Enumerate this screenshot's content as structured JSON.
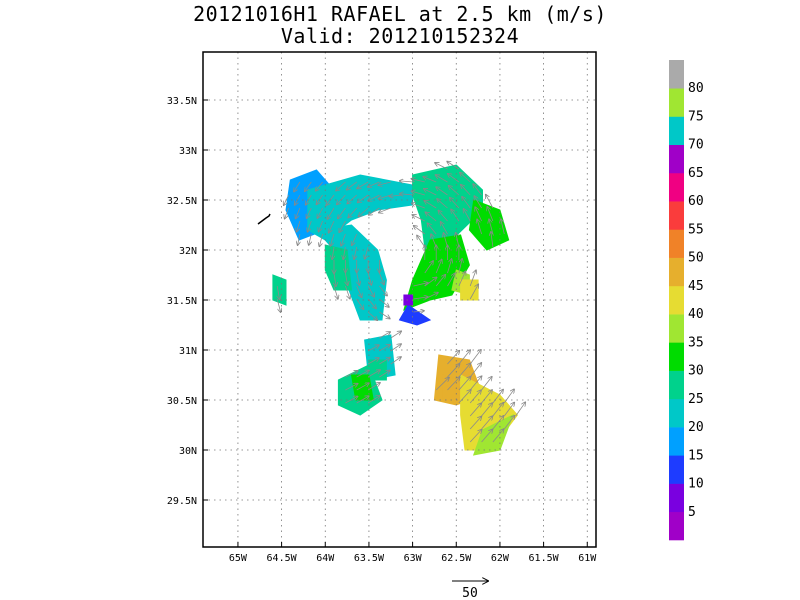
{
  "title": "20121016H1 RAFAEL at 2.5 km (m/s)",
  "subtitle": "Valid: 201210152324",
  "chart_data": {
    "type": "heatmap",
    "x_axis": {
      "range": [
        -65.4,
        -60.9
      ],
      "ticks": [
        -65,
        -64.5,
        -64,
        -63.5,
        -63,
        -62.5,
        -62,
        -61.5,
        -61
      ],
      "tick_labels": [
        "65W",
        "64.5W",
        "64W",
        "63.5W",
        "63W",
        "62.5W",
        "62W",
        "61.5W",
        "61W"
      ]
    },
    "y_axis": {
      "range": [
        29.03,
        33.98
      ],
      "ticks": [
        29.5,
        30,
        30.5,
        31,
        31.5,
        32,
        32.5,
        33,
        33.5
      ],
      "tick_labels": [
        "29.5N",
        "30N",
        "30.5N",
        "31N",
        "31.5N",
        "32N",
        "32.5N",
        "33N",
        "33.5N"
      ]
    },
    "grid": true,
    "colorbar": {
      "labels": [
        "5",
        "10",
        "15",
        "20",
        "25",
        "30",
        "35",
        "40",
        "45",
        "50",
        "55",
        "60",
        "65",
        "70",
        "75",
        "80"
      ],
      "colors": [
        "#a000c8",
        "#7a00e0",
        "#1e3cff",
        "#00a0ff",
        "#00c8c8",
        "#00d28c",
        "#00dc00",
        "#a0e632",
        "#e6dc32",
        "#e6af2d",
        "#f08228",
        "#fa3c3c",
        "#f00082",
        "#a000c8",
        "#00c8c8",
        "#a0e632",
        "#aaaaaa"
      ]
    },
    "vector_scale_label": "50",
    "regions": [
      {
        "value": 15,
        "poly": [
          [
            -64.4,
            32.7
          ],
          [
            -64.1,
            32.8
          ],
          [
            -63.9,
            32.6
          ],
          [
            -64.0,
            32.2
          ],
          [
            -64.3,
            32.1
          ],
          [
            -64.45,
            32.4
          ]
        ]
      },
      {
        "value": 22,
        "poly": [
          [
            -64.2,
            32.6
          ],
          [
            -63.6,
            32.75
          ],
          [
            -63.0,
            32.65
          ],
          [
            -63.0,
            32.45
          ],
          [
            -63.4,
            32.4
          ],
          [
            -63.7,
            32.3
          ],
          [
            -64.0,
            32.1
          ],
          [
            -64.2,
            32.2
          ]
        ]
      },
      {
        "value": 20,
        "poly": [
          [
            -64.1,
            32.2
          ],
          [
            -63.9,
            32.0
          ],
          [
            -63.75,
            31.65
          ],
          [
            -63.6,
            31.3
          ],
          [
            -63.35,
            31.3
          ],
          [
            -63.3,
            31.7
          ],
          [
            -63.4,
            32.0
          ],
          [
            -63.7,
            32.25
          ]
        ]
      },
      {
        "value": 25,
        "poly": [
          [
            -64.0,
            32.05
          ],
          [
            -63.75,
            32.0
          ],
          [
            -63.7,
            31.6
          ],
          [
            -63.9,
            31.6
          ],
          [
            -64.0,
            31.8
          ]
        ]
      },
      {
        "value": 27,
        "poly": [
          [
            -63.0,
            32.75
          ],
          [
            -62.5,
            32.85
          ],
          [
            -62.2,
            32.6
          ],
          [
            -62.2,
            32.4
          ],
          [
            -62.55,
            32.1
          ],
          [
            -62.85,
            31.95
          ],
          [
            -62.9,
            32.3
          ],
          [
            -63.0,
            32.55
          ]
        ]
      },
      {
        "value": 33,
        "poly": [
          [
            -62.3,
            32.5
          ],
          [
            -62.0,
            32.4
          ],
          [
            -61.9,
            32.1
          ],
          [
            -62.15,
            32.0
          ],
          [
            -62.35,
            32.2
          ]
        ]
      },
      {
        "value": 30,
        "poly": [
          [
            -62.8,
            32.1
          ],
          [
            -62.45,
            32.15
          ],
          [
            -62.35,
            31.85
          ],
          [
            -62.55,
            31.55
          ],
          [
            -62.8,
            31.5
          ],
          [
            -63.1,
            31.4
          ],
          [
            -63.0,
            31.7
          ]
        ]
      },
      {
        "value": 37,
        "poly": [
          [
            -62.5,
            31.8
          ],
          [
            -62.35,
            31.75
          ],
          [
            -62.35,
            31.55
          ],
          [
            -62.55,
            31.6
          ]
        ]
      },
      {
        "value": 40,
        "poly": [
          [
            -62.45,
            31.7
          ],
          [
            -62.25,
            31.7
          ],
          [
            -62.25,
            31.5
          ],
          [
            -62.45,
            31.5
          ]
        ]
      },
      {
        "value": 12,
        "poly": [
          [
            -63.05,
            31.45
          ],
          [
            -62.8,
            31.3
          ],
          [
            -62.95,
            31.25
          ],
          [
            -63.15,
            31.3
          ]
        ]
      },
      {
        "value": 8,
        "poly": [
          [
            -63.1,
            31.55
          ],
          [
            -63.0,
            31.55
          ],
          [
            -63.0,
            31.45
          ],
          [
            -63.1,
            31.45
          ]
        ]
      },
      {
        "value": 20,
        "poly": [
          [
            -63.55,
            31.1
          ],
          [
            -63.25,
            31.15
          ],
          [
            -63.2,
            30.75
          ],
          [
            -63.5,
            30.7
          ]
        ]
      },
      {
        "value": 25,
        "poly": [
          [
            -63.5,
            30.9
          ],
          [
            -63.3,
            30.9
          ],
          [
            -63.3,
            30.7
          ],
          [
            -63.5,
            30.7
          ]
        ]
      },
      {
        "value": 27,
        "poly": [
          [
            -63.85,
            30.7
          ],
          [
            -63.5,
            30.85
          ],
          [
            -63.35,
            30.5
          ],
          [
            -63.6,
            30.35
          ],
          [
            -63.85,
            30.45
          ]
        ]
      },
      {
        "value": 33,
        "poly": [
          [
            -63.7,
            30.75
          ],
          [
            -63.5,
            30.75
          ],
          [
            -63.45,
            30.5
          ],
          [
            -63.65,
            30.5
          ]
        ]
      },
      {
        "value": 25,
        "poly": [
          [
            -64.6,
            31.75
          ],
          [
            -64.45,
            31.7
          ],
          [
            -64.45,
            31.45
          ],
          [
            -64.6,
            31.5
          ]
        ]
      },
      {
        "value": 45,
        "poly": [
          [
            -62.7,
            30.95
          ],
          [
            -62.35,
            30.9
          ],
          [
            -62.2,
            30.55
          ],
          [
            -62.5,
            30.45
          ],
          [
            -62.75,
            30.5
          ]
        ]
      },
      {
        "value": 47,
        "poly": [
          [
            -62.65,
            30.75
          ],
          [
            -62.45,
            30.7
          ],
          [
            -62.45,
            30.5
          ],
          [
            -62.65,
            30.5
          ]
        ]
      },
      {
        "value": 40,
        "poly": [
          [
            -62.45,
            30.75
          ],
          [
            -62.0,
            30.55
          ],
          [
            -61.8,
            30.35
          ],
          [
            -62.1,
            30.0
          ],
          [
            -62.4,
            30.0
          ],
          [
            -62.45,
            30.35
          ]
        ]
      },
      {
        "value": 35,
        "poly": [
          [
            -62.2,
            30.2
          ],
          [
            -61.85,
            30.35
          ],
          [
            -62.0,
            30.0
          ],
          [
            -62.3,
            29.95
          ]
        ]
      }
    ]
  }
}
